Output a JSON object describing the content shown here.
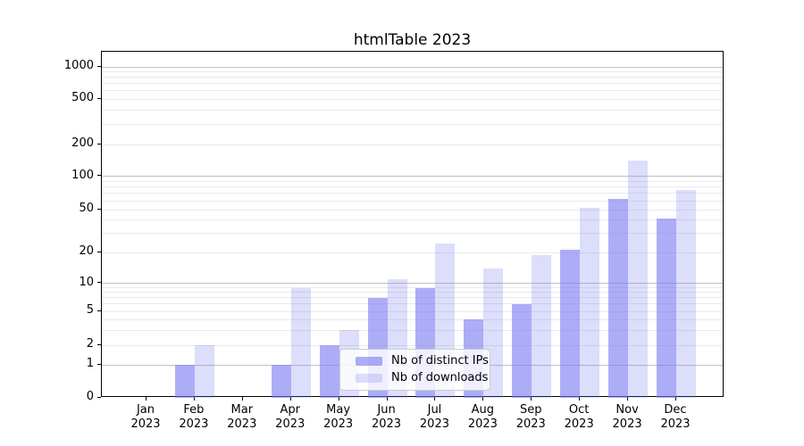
{
  "title": "htmlTable 2023",
  "colors": {
    "bar_base": "#7a7af2",
    "grid_major": "#c0c0c0",
    "grid_minor": "#e9e9e9",
    "axis": "#000000",
    "legend_border": "#cccccc",
    "legend_background": "rgba(255,255,255,0.8)"
  },
  "legend": {
    "items": [
      {
        "label": "Nb of distinct IPs",
        "swatch": "dark-periwinkle"
      },
      {
        "label": "Nb of downloads",
        "swatch": "light-lavender"
      }
    ]
  },
  "chart_data": {
    "type": "bar",
    "title": "htmlTable 2023",
    "xlabel": "",
    "ylabel": "",
    "yscale": "symlog",
    "y_ticks": [
      0,
      1,
      2,
      5,
      10,
      20,
      50,
      100,
      200,
      500,
      1000
    ],
    "ylim": [
      0,
      1500
    ],
    "grid": "horizontal major and log-minor gridlines",
    "legend_position": "lower center, inside axes",
    "x_tick_year": "2023",
    "categories": [
      "Jan",
      "Feb",
      "Mar",
      "Apr",
      "May",
      "Jun",
      "Jul",
      "Aug",
      "Sep",
      "Oct",
      "Nov",
      "Dec"
    ],
    "series": [
      {
        "key": "ips",
        "name": "Nb of distinct IPs",
        "alpha": 0.62,
        "values": [
          0,
          1,
          0,
          1,
          2,
          7,
          9,
          4,
          6,
          21,
          62,
          41
        ]
      },
      {
        "key": "downloads",
        "name": "Nb of downloads",
        "alpha": 0.26,
        "values": [
          0,
          2,
          0,
          9,
          3,
          11,
          24,
          14,
          19,
          52,
          140,
          75
        ]
      }
    ]
  }
}
